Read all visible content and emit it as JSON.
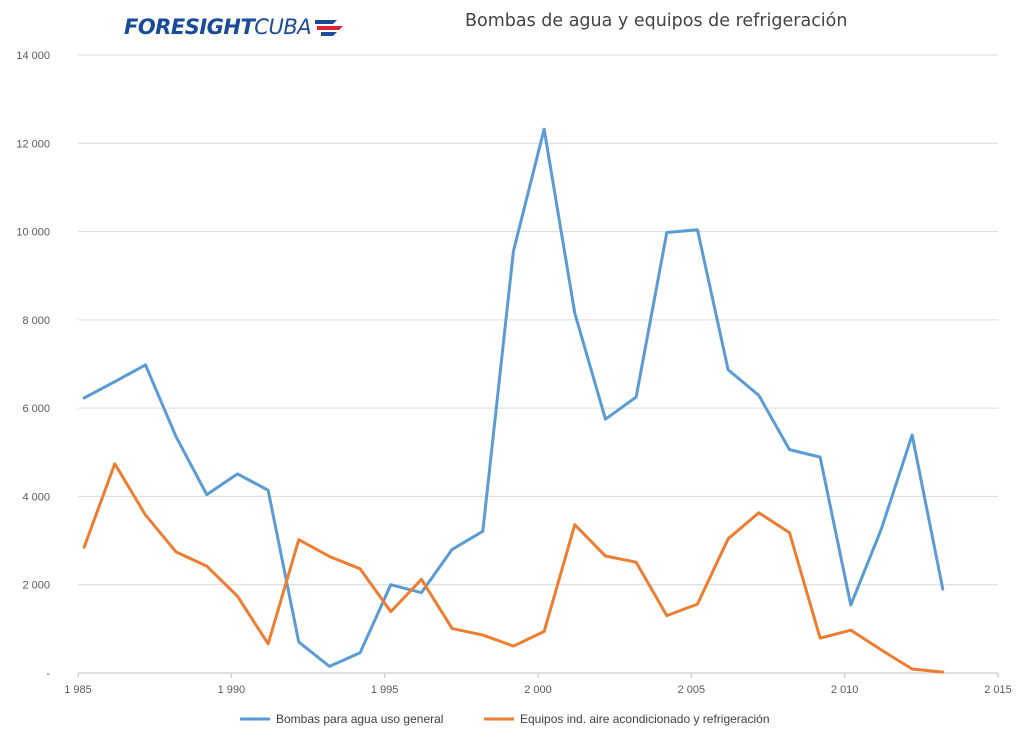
{
  "logo": {
    "part1": "FORESIGHT",
    "part2": "CUBA"
  },
  "chart_data": {
    "type": "line",
    "title": "Bombas de agua y equipos de refrigeración",
    "xlabel": "",
    "ylabel": "",
    "xlim": [
      1985,
      2015
    ],
    "ylim": [
      0,
      14000
    ],
    "x_ticks": [
      1985,
      1990,
      1995,
      2000,
      2005,
      2010,
      2015
    ],
    "x_tick_labels": [
      "1 985",
      "1 990",
      "1 995",
      "2 000",
      "2 005",
      "2 010",
      "2 015"
    ],
    "y_ticks": [
      0,
      2000,
      4000,
      6000,
      8000,
      10000,
      12000,
      14000
    ],
    "y_tick_labels": [
      "-",
      "2 000",
      "4 000",
      "6 000",
      "8 000",
      "10 000",
      "12 000",
      "14 000"
    ],
    "grid": "horizontal",
    "legend_position": "bottom",
    "series": [
      {
        "name": "Bombas para agua uso general",
        "color": "#5b9bd5",
        "x": [
          1985,
          1986,
          1987,
          1988,
          1989,
          1990,
          1991,
          1992,
          1993,
          1994,
          1995,
          1996,
          1997,
          1998,
          1999,
          2000,
          2001,
          2002,
          2003,
          2004,
          2005,
          2006,
          2007,
          2008,
          2009,
          2010,
          2011,
          2012,
          2013
        ],
        "values": [
          6230,
          6600,
          6980,
          5350,
          4040,
          4510,
          4140,
          700,
          150,
          460,
          2000,
          1820,
          2800,
          3210,
          9560,
          12320,
          8150,
          5750,
          6250,
          9980,
          10040,
          6870,
          6290,
          5060,
          4890,
          1540,
          3270,
          5390,
          1900
        ]
      },
      {
        "name": "Equipos ind. aire acondicionado y refrigeración",
        "color": "#ed7d31",
        "x": [
          1985,
          1986,
          1987,
          1988,
          1989,
          1990,
          1991,
          1992,
          1993,
          1994,
          1995,
          1996,
          1997,
          1998,
          1999,
          2000,
          2001,
          2002,
          2003,
          2004,
          2005,
          2006,
          2007,
          2008,
          2009,
          2010,
          2011,
          2012,
          2013
        ],
        "values": [
          2850,
          4740,
          3580,
          2740,
          2420,
          1740,
          660,
          3020,
          2640,
          2360,
          1390,
          2120,
          1010,
          860,
          610,
          940,
          3360,
          2650,
          2510,
          1300,
          1560,
          3040,
          3630,
          3180,
          790,
          970,
          520,
          90,
          20
        ]
      }
    ]
  }
}
